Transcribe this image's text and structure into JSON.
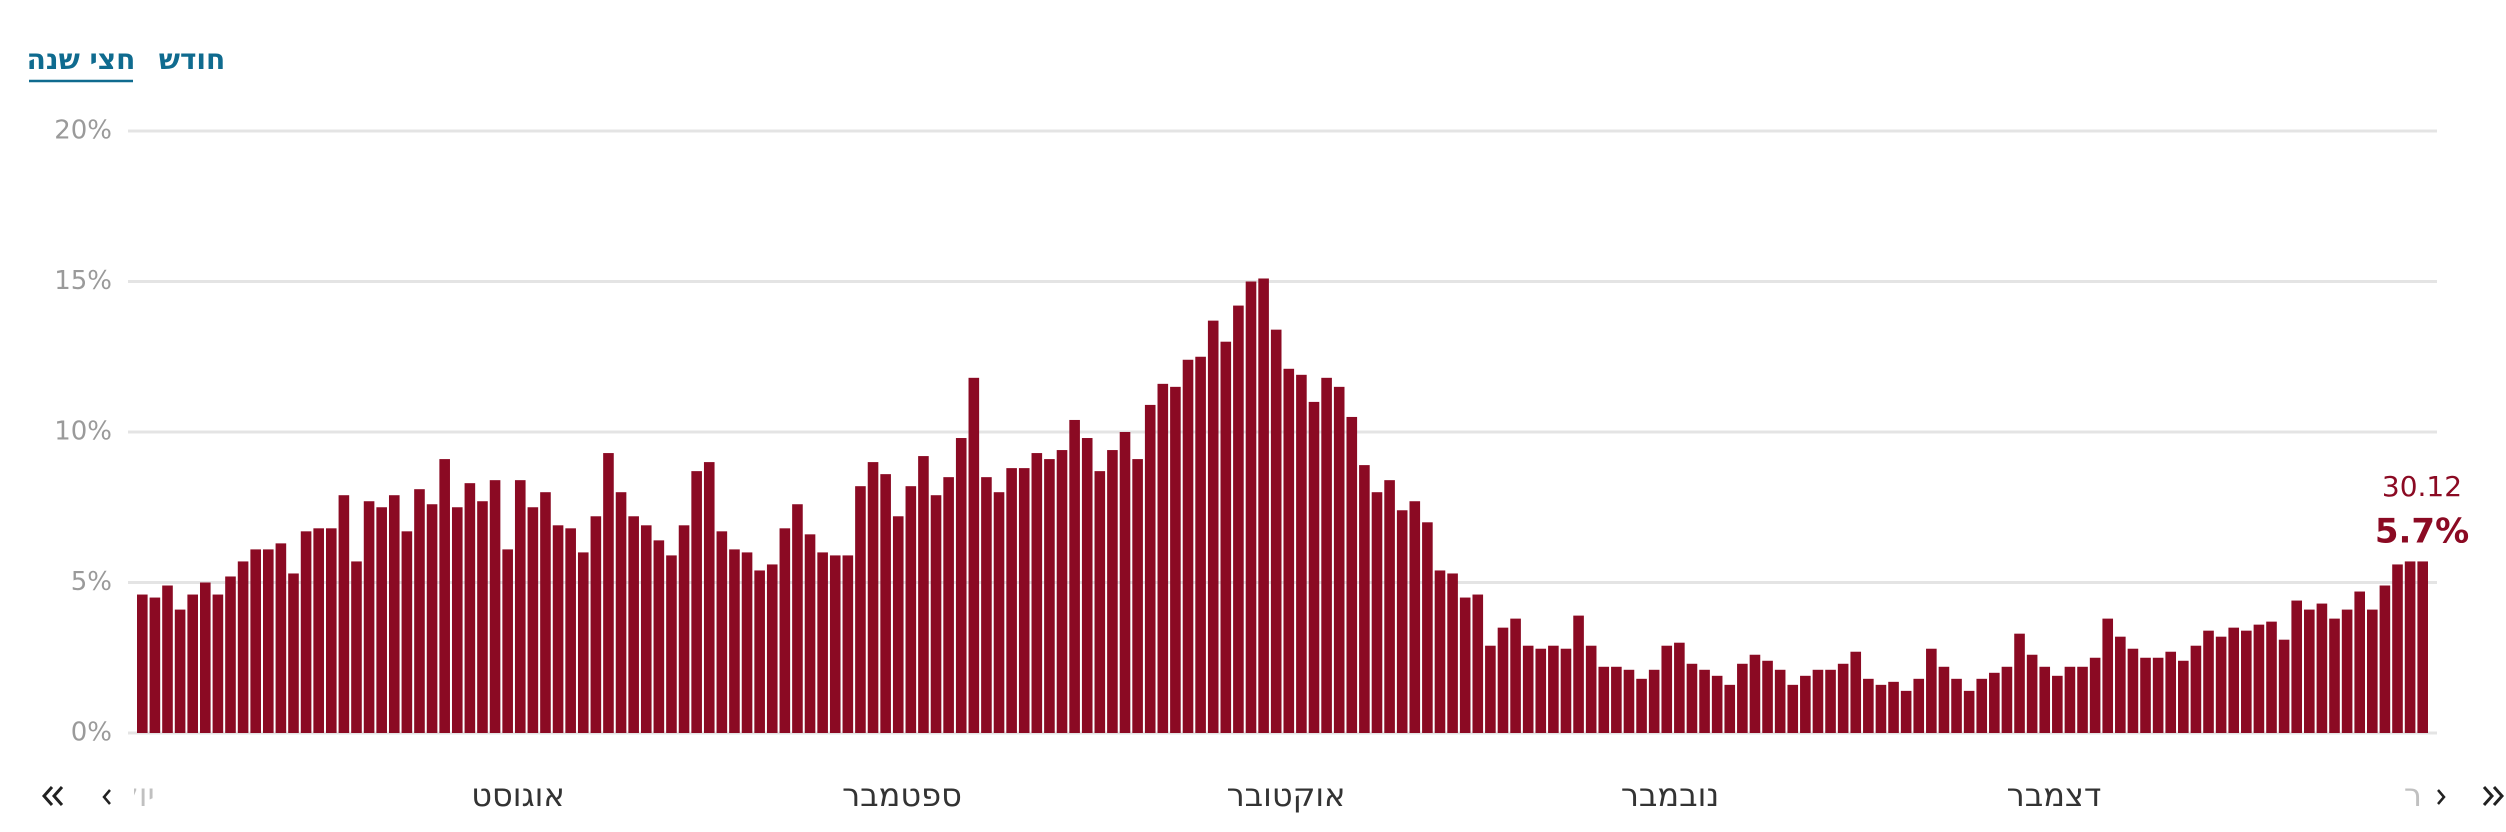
{
  "tabs": [
    "חצי שנה",
    "חודש"
  ],
  "active_tab": 0,
  "chart_data": {
    "type": "bar",
    "color": "#8b0a23",
    "values": [
      4.6,
      4.5,
      4.9,
      4.1,
      4.6,
      5.0,
      4.6,
      5.2,
      5.7,
      6.1,
      6.1,
      6.3,
      5.3,
      6.7,
      6.8,
      6.8,
      7.9,
      5.7,
      7.7,
      7.5,
      7.9,
      6.7,
      8.1,
      7.6,
      9.1,
      7.5,
      8.3,
      7.7,
      8.4,
      6.1,
      8.4,
      7.5,
      8.0,
      6.9,
      6.8,
      6.0,
      7.2,
      9.3,
      8.0,
      7.2,
      6.9,
      6.4,
      5.9,
      6.9,
      8.7,
      9.0,
      6.7,
      6.1,
      6.0,
      5.4,
      5.6,
      6.8,
      7.6,
      6.6,
      6.0,
      5.9,
      5.9,
      8.2,
      9.0,
      8.6,
      7.2,
      8.2,
      9.2,
      7.9,
      8.5,
      9.8,
      11.8,
      8.5,
      8.0,
      8.8,
      8.8,
      9.3,
      9.1,
      9.4,
      10.4,
      9.8,
      8.7,
      9.4,
      10.0,
      9.1,
      10.9,
      11.6,
      11.5,
      12.4,
      12.5,
      13.7,
      13.0,
      14.2,
      15.0,
      15.1,
      13.4,
      12.1,
      11.9,
      11.0,
      11.8,
      11.5,
      10.5,
      8.9,
      8.0,
      8.4,
      7.4,
      7.7,
      7.0,
      5.4,
      5.3,
      4.5,
      4.6,
      2.9,
      3.5,
      3.8,
      2.9,
      2.8,
      2.9,
      2.8,
      3.9,
      2.9,
      2.2,
      2.2,
      2.1,
      1.8,
      2.1,
      2.9,
      3.0,
      2.3,
      2.1,
      1.9,
      1.6,
      2.3,
      2.6,
      2.4,
      2.1,
      1.6,
      1.9,
      2.1,
      2.1,
      2.3,
      2.7,
      1.8,
      1.6,
      1.7,
      1.4,
      1.8,
      2.8,
      2.2,
      1.8,
      1.4,
      1.8,
      2.0,
      2.2,
      3.3,
      2.6,
      2.2,
      1.9,
      2.2,
      2.2,
      2.5,
      3.8,
      3.2,
      2.8,
      2.5,
      2.5,
      2.7,
      2.4,
      2.9,
      3.4,
      3.2,
      3.5,
      3.4,
      3.6,
      3.7,
      3.1,
      4.4,
      4.1,
      4.3,
      3.8,
      4.1,
      4.7,
      4.1,
      4.9,
      5.6,
      5.7,
      5.7
    ],
    "last_date": "30.12",
    "last_label": "5.7%",
    "month_labels": [
      "יולי",
      "אוגוסט",
      "ספטמבר",
      "אוקטובר",
      "נובמבר",
      "דצמבר",
      "ינואר"
    ],
    "ylim": [
      0,
      20
    ],
    "yticks": [
      {
        "value": 0,
        "label": "0%"
      },
      {
        "value": 5,
        "label": "5%"
      },
      {
        "value": 10,
        "label": "10%"
      },
      {
        "value": 15,
        "label": "15%"
      },
      {
        "value": 20,
        "label": "20%"
      }
    ],
    "grid": true
  }
}
